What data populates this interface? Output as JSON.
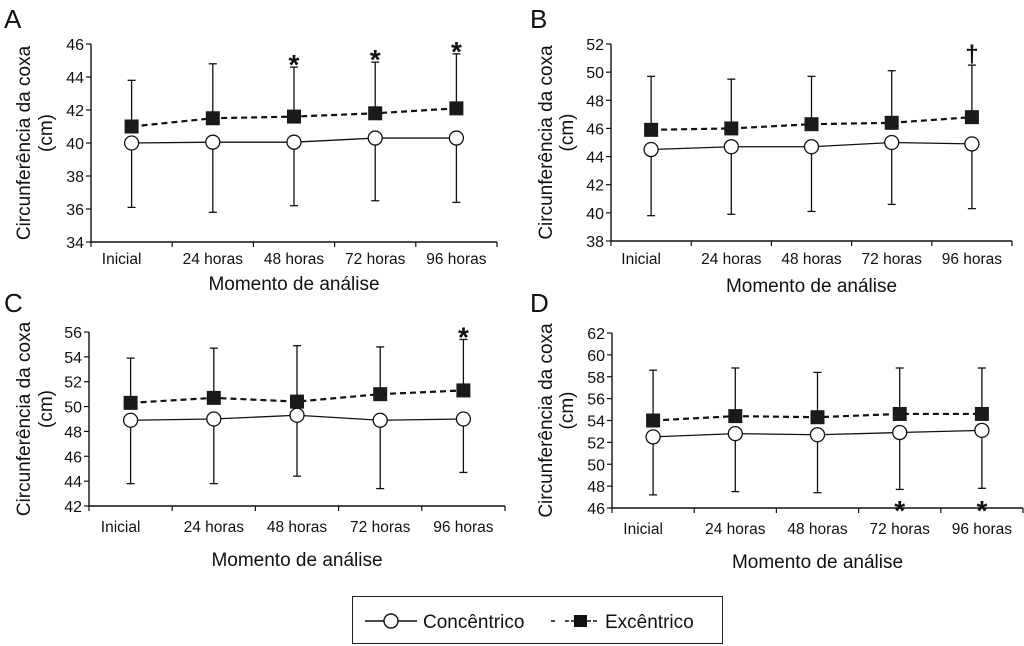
{
  "chart_data": [
    {
      "type": "line",
      "panel_label": "A",
      "title": "",
      "xlabel": "Momento de análise",
      "ylabel": "Circunferência da coxa (cm)",
      "categories": [
        "Inicial",
        "24 horas",
        "48 horas",
        "72 horas",
        "96 horas"
      ],
      "ylim": [
        34,
        46
      ],
      "yticks": [
        34,
        36,
        38,
        40,
        42,
        44,
        46
      ],
      "series": [
        {
          "name": "Concêntrico",
          "values": [
            40.0,
            40.05,
            40.05,
            40.3,
            40.3
          ],
          "error_lower": [
            36.1,
            35.8,
            36.2,
            36.5,
            36.4
          ]
        },
        {
          "name": "Excêntrico",
          "values": [
            41.0,
            41.5,
            41.6,
            41.8,
            42.1
          ],
          "error_upper": [
            43.8,
            44.8,
            44.6,
            44.9,
            45.4
          ]
        }
      ],
      "annotations": [
        {
          "category": "48 horas",
          "text": "*",
          "position": "above"
        },
        {
          "category": "72 horas",
          "text": "*",
          "position": "above"
        },
        {
          "category": "96 horas",
          "text": "*",
          "position": "above"
        }
      ]
    },
    {
      "type": "line",
      "panel_label": "B",
      "title": "",
      "xlabel": "Momento de análise",
      "ylabel": "Circunferência da coxa (cm)",
      "categories": [
        "Inicial",
        "24 horas",
        "48 horas",
        "72 horas",
        "96 horas"
      ],
      "ylim": [
        38,
        52
      ],
      "yticks": [
        38,
        40,
        42,
        44,
        46,
        48,
        50,
        52
      ],
      "series": [
        {
          "name": "Concêntrico",
          "values": [
            44.5,
            44.7,
            44.7,
            45.0,
            44.9
          ],
          "error_lower": [
            39.8,
            39.9,
            40.1,
            40.6,
            40.3
          ]
        },
        {
          "name": "Excêntrico",
          "values": [
            45.9,
            46.0,
            46.3,
            46.4,
            46.8
          ],
          "error_upper": [
            49.7,
            49.5,
            49.7,
            50.1,
            50.5
          ]
        }
      ],
      "annotations": [
        {
          "category": "96 horas",
          "text": "†",
          "position": "above"
        }
      ]
    },
    {
      "type": "line",
      "panel_label": "C",
      "title": "",
      "xlabel": "Momento de análise",
      "ylabel": "Circunferência da coxa (cm)",
      "categories": [
        "Inicial",
        "24 horas",
        "48 horas",
        "72 horas",
        "96 horas"
      ],
      "ylim": [
        42,
        56
      ],
      "yticks": [
        42,
        44,
        46,
        48,
        50,
        52,
        54,
        56
      ],
      "series": [
        {
          "name": "Concêntrico",
          "values": [
            48.9,
            49.0,
            49.3,
            48.9,
            49.0
          ],
          "error_lower": [
            43.8,
            43.8,
            44.4,
            43.4,
            44.7
          ]
        },
        {
          "name": "Excêntrico",
          "values": [
            50.3,
            50.7,
            50.4,
            51.0,
            51.3
          ],
          "error_upper": [
            53.9,
            54.7,
            54.9,
            54.8,
            55.4
          ]
        }
      ],
      "annotations": [
        {
          "category": "96 horas",
          "text": "*",
          "position": "above"
        }
      ]
    },
    {
      "type": "line",
      "panel_label": "D",
      "title": "",
      "xlabel": "Momento de análise",
      "ylabel": "Circunferência da coxa (cm)",
      "categories": [
        "Inicial",
        "24 horas",
        "48 horas",
        "72 horas",
        "96 horas"
      ],
      "ylim": [
        46,
        62
      ],
      "yticks": [
        46,
        48,
        50,
        52,
        54,
        56,
        58,
        60,
        62
      ],
      "series": [
        {
          "name": "Concêntrico",
          "values": [
            52.5,
            52.8,
            52.7,
            52.9,
            53.1
          ],
          "error_lower": [
            47.2,
            47.5,
            47.4,
            47.7,
            47.8
          ]
        },
        {
          "name": "Excêntrico",
          "values": [
            54.0,
            54.4,
            54.3,
            54.6,
            54.6
          ],
          "error_upper": [
            58.6,
            58.8,
            58.4,
            58.8,
            58.8
          ]
        }
      ],
      "annotations": [
        {
          "category": "72 horas",
          "text": "*",
          "position": "below"
        },
        {
          "category": "96 horas",
          "text": "*",
          "position": "below"
        }
      ]
    }
  ],
  "legend": {
    "placement": "bottom-center",
    "items": [
      {
        "label": "Concêntrico",
        "marker": "open-circle",
        "line": "solid"
      },
      {
        "label": "Excêntrico",
        "marker": "filled-square",
        "line": "dashed"
      }
    ]
  }
}
